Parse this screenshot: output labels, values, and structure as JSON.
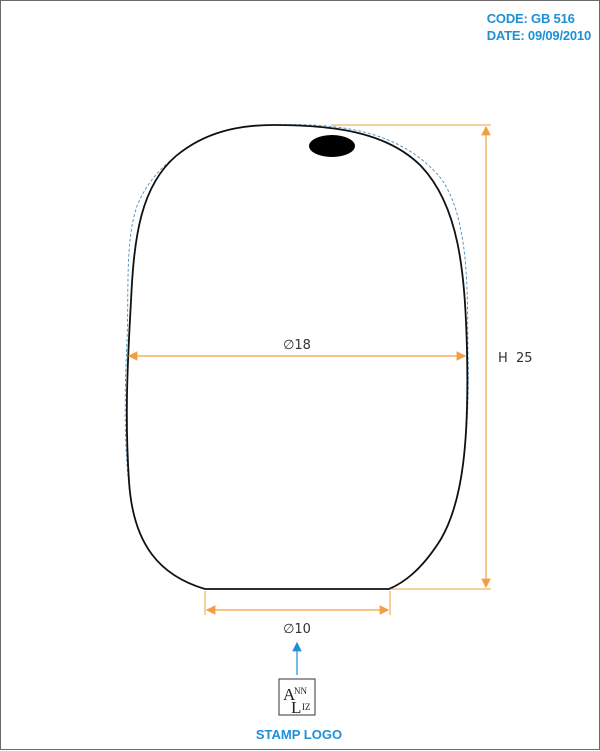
{
  "header": {
    "code_label": "CODE:",
    "code_value": "GB 516",
    "date_label": "DATE:",
    "date_value": "09/09/2010"
  },
  "dimensions": {
    "diameter_max": "∅18",
    "diameter_base": "∅10",
    "height": "H  25"
  },
  "stamp": {
    "label": "STAMP LOGO",
    "logo_top": "A",
    "logo_top_small": "NN",
    "logo_bottom": "L",
    "logo_bottom_small": "IZ"
  },
  "colors": {
    "dimension_line": "#f0a040",
    "accent": "#1f8fd6",
    "outline": "#111111"
  }
}
